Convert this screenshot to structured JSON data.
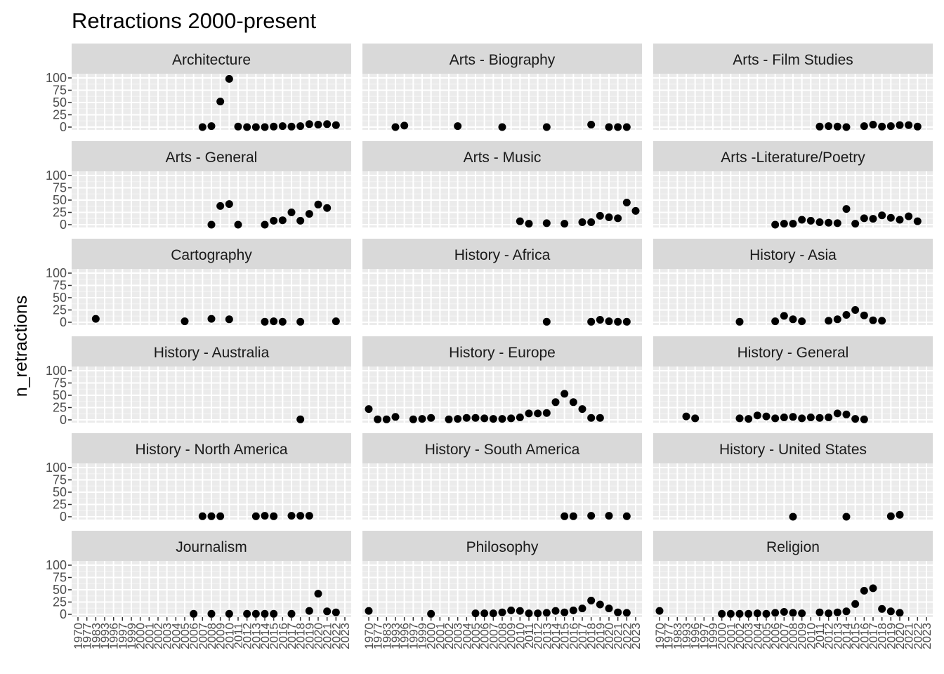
{
  "chart_data": {
    "type": "scatter",
    "title": "Retractions 2000-present",
    "ylabel": "n_retractions",
    "xlabel": "",
    "ylim": [
      0,
      100
    ],
    "y_ticks": [
      0,
      25,
      50,
      75,
      100
    ],
    "x_categories": [
      "1970",
      "1977",
      "1983",
      "1993",
      "1996",
      "1997",
      "1999",
      "2000",
      "2001",
      "2002",
      "2003",
      "2004",
      "2005",
      "2006",
      "2007",
      "2008",
      "2009",
      "2010",
      "2011",
      "2012",
      "2013",
      "2014",
      "2015",
      "2016",
      "2017",
      "2018",
      "2019",
      "2020",
      "2021",
      "2022",
      "2023"
    ],
    "marker_color": "#000000",
    "strip_color": "#d9d9d9",
    "panel_color": "#ebebeb",
    "grid": true,
    "facets": [
      {
        "name": "Architecture",
        "points": [
          [
            "2007",
            0
          ],
          [
            "2008",
            2
          ],
          [
            "2009",
            52
          ],
          [
            "2010",
            98
          ],
          [
            "2011",
            1
          ],
          [
            "2012",
            0
          ],
          [
            "2013",
            0
          ],
          [
            "2014",
            0
          ],
          [
            "2015",
            1
          ],
          [
            "2016",
            2
          ],
          [
            "2017",
            1
          ],
          [
            "2018",
            2
          ],
          [
            "2019",
            6
          ],
          [
            "2020",
            5
          ],
          [
            "2021",
            6
          ],
          [
            "2022",
            4
          ]
        ]
      },
      {
        "name": "Arts - Biography",
        "points": [
          [
            "1993",
            0
          ],
          [
            "1996",
            3
          ],
          [
            "2003",
            2
          ],
          [
            "2008",
            0
          ],
          [
            "2013",
            0
          ],
          [
            "2018",
            5
          ],
          [
            "2020",
            0
          ],
          [
            "2021",
            0
          ],
          [
            "2022",
            0
          ]
        ]
      },
      {
        "name": "Arts - Film Studies",
        "points": [
          [
            "2011",
            1
          ],
          [
            "2012",
            2
          ],
          [
            "2013",
            1
          ],
          [
            "2014",
            0
          ],
          [
            "2016",
            2
          ],
          [
            "2017",
            5
          ],
          [
            "2018",
            1
          ],
          [
            "2019",
            2
          ],
          [
            "2020",
            4
          ],
          [
            "2021",
            4
          ],
          [
            "2022",
            1
          ]
        ]
      },
      {
        "name": "Arts - General",
        "points": [
          [
            "2008",
            0
          ],
          [
            "2009",
            38
          ],
          [
            "2010",
            42
          ],
          [
            "2011",
            0
          ],
          [
            "2014",
            0
          ],
          [
            "2015",
            8
          ],
          [
            "2016",
            9
          ],
          [
            "2017",
            25
          ],
          [
            "2018",
            8
          ],
          [
            "2019",
            22
          ],
          [
            "2020",
            41
          ],
          [
            "2021",
            34
          ]
        ]
      },
      {
        "name": "Arts - Music",
        "points": [
          [
            "2010",
            7
          ],
          [
            "2011",
            2
          ],
          [
            "2013",
            3
          ],
          [
            "2015",
            2
          ],
          [
            "2017",
            5
          ],
          [
            "2018",
            5
          ],
          [
            "2019",
            18
          ],
          [
            "2020",
            15
          ],
          [
            "2021",
            13
          ],
          [
            "2022",
            45
          ],
          [
            "2023",
            28
          ]
        ]
      },
      {
        "name": "Arts -Literature/Poetry",
        "points": [
          [
            "2006",
            0
          ],
          [
            "2007",
            2
          ],
          [
            "2008",
            2
          ],
          [
            "2009",
            10
          ],
          [
            "2010",
            8
          ],
          [
            "2011",
            5
          ],
          [
            "2012",
            4
          ],
          [
            "2013",
            3
          ],
          [
            "2014",
            32
          ],
          [
            "2015",
            2
          ],
          [
            "2016",
            13
          ],
          [
            "2017",
            12
          ],
          [
            "2018",
            19
          ],
          [
            "2019",
            14
          ],
          [
            "2020",
            10
          ],
          [
            "2021",
            17
          ],
          [
            "2022",
            7
          ]
        ]
      },
      {
        "name": "Cartography",
        "points": [
          [
            "1983",
            7
          ],
          [
            "2005",
            2
          ],
          [
            "2008",
            7
          ],
          [
            "2010",
            6
          ],
          [
            "2014",
            1
          ],
          [
            "2015",
            2
          ],
          [
            "2016",
            1
          ],
          [
            "2018",
            1
          ],
          [
            "2022",
            2
          ]
        ]
      },
      {
        "name": "History - Africa",
        "points": [
          [
            "2013",
            1
          ],
          [
            "2018",
            1
          ],
          [
            "2019",
            5
          ],
          [
            "2020",
            2
          ],
          [
            "2021",
            1
          ],
          [
            "2022",
            1
          ]
        ]
      },
      {
        "name": "History - Asia",
        "points": [
          [
            "2002",
            1
          ],
          [
            "2006",
            2
          ],
          [
            "2007",
            13
          ],
          [
            "2008",
            6
          ],
          [
            "2009",
            2
          ],
          [
            "2012",
            3
          ],
          [
            "2013",
            6
          ],
          [
            "2014",
            15
          ],
          [
            "2015",
            25
          ],
          [
            "2016",
            14
          ],
          [
            "2017",
            4
          ],
          [
            "2018",
            3
          ]
        ]
      },
      {
        "name": "History - Australia",
        "points": [
          [
            "2018",
            1
          ]
        ]
      },
      {
        "name": "History - Europe",
        "points": [
          [
            "1970",
            22
          ],
          [
            "1977",
            1
          ],
          [
            "1983",
            1
          ],
          [
            "1993",
            6
          ],
          [
            "1997",
            1
          ],
          [
            "1999",
            2
          ],
          [
            "2000",
            4
          ],
          [
            "2002",
            1
          ],
          [
            "2003",
            2
          ],
          [
            "2004",
            4
          ],
          [
            "2005",
            4
          ],
          [
            "2006",
            3
          ],
          [
            "2007",
            2
          ],
          [
            "2008",
            2
          ],
          [
            "2009",
            3
          ],
          [
            "2010",
            5
          ],
          [
            "2011",
            13
          ],
          [
            "2012",
            13
          ],
          [
            "2013",
            14
          ],
          [
            "2014",
            36
          ],
          [
            "2015",
            53
          ],
          [
            "2016",
            36
          ],
          [
            "2017",
            22
          ],
          [
            "2018",
            4
          ],
          [
            "2019",
            4
          ]
        ]
      },
      {
        "name": "History - General",
        "points": [
          [
            "1993",
            7
          ],
          [
            "1996",
            3
          ],
          [
            "2002",
            3
          ],
          [
            "2003",
            2
          ],
          [
            "2004",
            9
          ],
          [
            "2005",
            7
          ],
          [
            "2006",
            3
          ],
          [
            "2007",
            5
          ],
          [
            "2008",
            6
          ],
          [
            "2009",
            3
          ],
          [
            "2010",
            5
          ],
          [
            "2011",
            4
          ],
          [
            "2012",
            5
          ],
          [
            "2013",
            13
          ],
          [
            "2014",
            11
          ],
          [
            "2015",
            2
          ],
          [
            "2016",
            1
          ]
        ]
      },
      {
        "name": "History - North America",
        "points": [
          [
            "2007",
            1
          ],
          [
            "2008",
            1
          ],
          [
            "2009",
            1
          ],
          [
            "2013",
            1
          ],
          [
            "2014",
            2
          ],
          [
            "2015",
            1
          ],
          [
            "2017",
            2
          ],
          [
            "2018",
            2
          ],
          [
            "2019",
            2
          ]
        ]
      },
      {
        "name": "History - South America",
        "points": [
          [
            "2015",
            1
          ],
          [
            "2016",
            1
          ],
          [
            "2018",
            2
          ],
          [
            "2020",
            2
          ],
          [
            "2022",
            1
          ]
        ]
      },
      {
        "name": "History - United States",
        "points": [
          [
            "2008",
            0
          ],
          [
            "2014",
            0
          ],
          [
            "2019",
            1
          ],
          [
            "2020",
            4
          ]
        ]
      },
      {
        "name": "Journalism",
        "points": [
          [
            "2006",
            1
          ],
          [
            "2008",
            1
          ],
          [
            "2010",
            1
          ],
          [
            "2012",
            1
          ],
          [
            "2013",
            1
          ],
          [
            "2014",
            1
          ],
          [
            "2015",
            1
          ],
          [
            "2017",
            1
          ],
          [
            "2019",
            7
          ],
          [
            "2020",
            42
          ],
          [
            "2021",
            6
          ],
          [
            "2022",
            4
          ]
        ]
      },
      {
        "name": "Philosophy",
        "points": [
          [
            "1970",
            7
          ],
          [
            "2000",
            1
          ],
          [
            "2005",
            2
          ],
          [
            "2006",
            2
          ],
          [
            "2007",
            2
          ],
          [
            "2008",
            4
          ],
          [
            "2009",
            8
          ],
          [
            "2010",
            7
          ],
          [
            "2011",
            2
          ],
          [
            "2012",
            2
          ],
          [
            "2013",
            3
          ],
          [
            "2014",
            7
          ],
          [
            "2015",
            4
          ],
          [
            "2016",
            8
          ],
          [
            "2017",
            12
          ],
          [
            "2018",
            28
          ],
          [
            "2019",
            20
          ],
          [
            "2020",
            12
          ],
          [
            "2021",
            4
          ],
          [
            "2022",
            3
          ]
        ]
      },
      {
        "name": "Religion",
        "points": [
          [
            "1970",
            7
          ],
          [
            "2000",
            1
          ],
          [
            "2001",
            1
          ],
          [
            "2002",
            1
          ],
          [
            "2003",
            1
          ],
          [
            "2004",
            2
          ],
          [
            "2005",
            1
          ],
          [
            "2006",
            3
          ],
          [
            "2007",
            5
          ],
          [
            "2008",
            3
          ],
          [
            "2009",
            2
          ],
          [
            "2011",
            4
          ],
          [
            "2012",
            2
          ],
          [
            "2013",
            4
          ],
          [
            "2014",
            6
          ],
          [
            "2015",
            21
          ],
          [
            "2016",
            48
          ],
          [
            "2017",
            53
          ],
          [
            "2018",
            11
          ],
          [
            "2019",
            6
          ],
          [
            "2020",
            3
          ]
        ]
      }
    ]
  }
}
